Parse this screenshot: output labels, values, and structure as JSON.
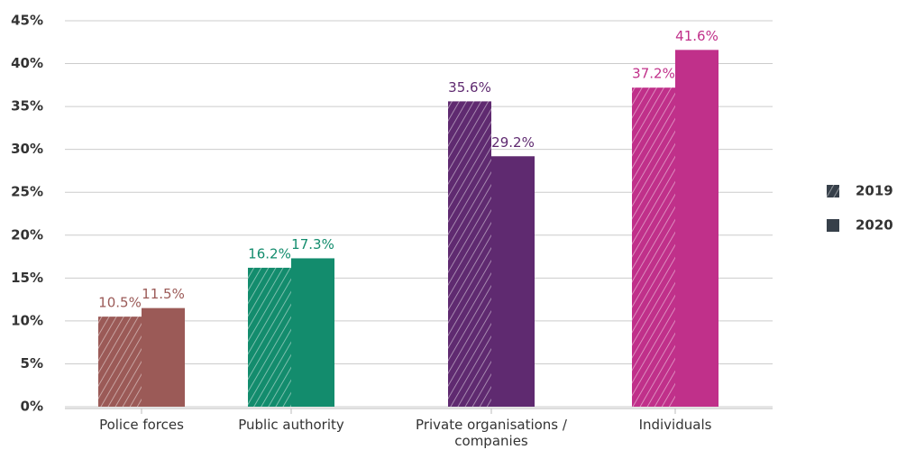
{
  "chart_data": {
    "type": "bar",
    "categories": [
      "Police forces",
      "Public authority",
      "Private organisations / companies",
      "Individuals"
    ],
    "colors": [
      "#9b5a57",
      "#138c6d",
      "#5f2a70",
      "#c0308a"
    ],
    "series": [
      {
        "name": "2019",
        "color": "#37404a",
        "hatched": true,
        "values": [
          10.5,
          16.2,
          35.6,
          37.2
        ],
        "value_labels": [
          "10.5%",
          "16.2%",
          "35.6%",
          "37.2%"
        ]
      },
      {
        "name": "2020",
        "color": "#37404a",
        "hatched": false,
        "values": [
          11.5,
          17.3,
          29.2,
          41.6
        ],
        "value_labels": [
          "11.5%",
          "17.3%",
          "29.2%",
          "41.6%"
        ]
      }
    ],
    "ylim": [
      0,
      45
    ],
    "yticks": [
      {
        "value": 0,
        "label": "0%"
      },
      {
        "value": 5,
        "label": "5%"
      },
      {
        "value": 10,
        "label": "10%"
      },
      {
        "value": 15,
        "label": "15%"
      },
      {
        "value": 20,
        "label": "20%"
      },
      {
        "value": 25,
        "label": "25%"
      },
      {
        "value": 30,
        "label": "30%"
      },
      {
        "value": 35,
        "label": "35%"
      },
      {
        "value": 40,
        "label": "40%"
      },
      {
        "value": 45,
        "label": "45%"
      }
    ],
    "grid": true,
    "legend": "right"
  }
}
